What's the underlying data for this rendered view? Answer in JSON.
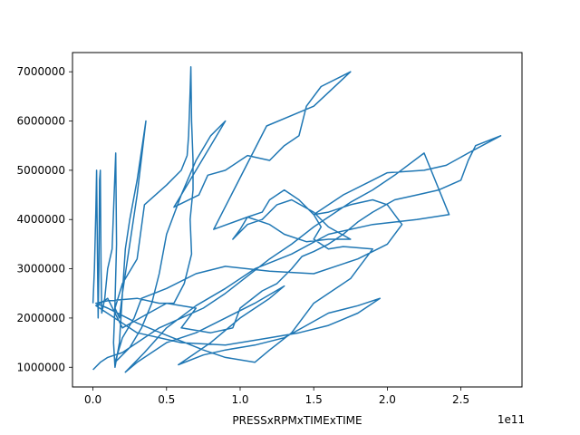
{
  "chart_data": {
    "type": "line",
    "title": "",
    "xlabel": "PRESSxRPMxTIMExTIME",
    "ylabel": "",
    "x_scale_note": "1e11",
    "xlim": [
      -0.139,
      2.915
    ],
    "ylim": [
      600000,
      7390000
    ],
    "x_ticks": [
      0.0,
      0.5,
      1.0,
      1.5,
      2.0,
      2.5
    ],
    "x_tick_labels": [
      "0.0",
      "0.5",
      "1.0",
      "1.5",
      "2.0",
      "2.5"
    ],
    "y_ticks": [
      1000000,
      2000000,
      3000000,
      4000000,
      5000000,
      6000000,
      7000000
    ],
    "y_tick_labels": [
      "1000000",
      "2000000",
      "3000000",
      "4000000",
      "5000000",
      "6000000",
      "7000000"
    ],
    "grid": false,
    "color": "#1f77b4",
    "series": [
      {
        "name": "",
        "x_units": "1e11",
        "points": [
          [
            0.0,
            2300000
          ],
          [
            0.01,
            3000000
          ],
          [
            0.02,
            4200000
          ],
          [
            0.025,
            5000000
          ],
          [
            0.03,
            3500000
          ],
          [
            0.035,
            2000000
          ],
          [
            0.04,
            3000000
          ],
          [
            0.045,
            4800000
          ],
          [
            0.05,
            5000000
          ],
          [
            0.055,
            3000000
          ],
          [
            0.06,
            2100000
          ],
          [
            0.08,
            2400000
          ],
          [
            0.1,
            3000000
          ],
          [
            0.13,
            3400000
          ],
          [
            0.155,
            5350000
          ],
          [
            0.16,
            3500000
          ],
          [
            0.15,
            2300000
          ],
          [
            0.14,
            1500000
          ],
          [
            0.15,
            1000000
          ],
          [
            0.18,
            1500000
          ],
          [
            0.2,
            2500000
          ],
          [
            0.22,
            3400000
          ],
          [
            0.25,
            4000000
          ],
          [
            0.3,
            4800000
          ],
          [
            0.36,
            6000000
          ],
          [
            0.3,
            4500000
          ],
          [
            0.25,
            3500000
          ],
          [
            0.2,
            2500000
          ],
          [
            0.18,
            2000000
          ],
          [
            0.15,
            2200000
          ],
          [
            0.2,
            2700000
          ],
          [
            0.3,
            3200000
          ],
          [
            0.35,
            4300000
          ],
          [
            0.5,
            4700000
          ],
          [
            0.6,
            5000000
          ],
          [
            0.64,
            5300000
          ],
          [
            0.65,
            5700000
          ],
          [
            0.66,
            6600000
          ],
          [
            0.665,
            7100000
          ],
          [
            0.67,
            6000000
          ],
          [
            0.68,
            5200000
          ],
          [
            0.68,
            4600000
          ],
          [
            0.66,
            4000000
          ],
          [
            0.67,
            3300000
          ],
          [
            0.62,
            2700000
          ],
          [
            0.55,
            2300000
          ],
          [
            0.45,
            2300000
          ],
          [
            0.3,
            2400000
          ],
          [
            0.1,
            2350000
          ],
          [
            0.02,
            2300000
          ],
          [
            0.1,
            2200000
          ],
          [
            0.3,
            1900000
          ],
          [
            0.5,
            1650000
          ],
          [
            0.75,
            1350000
          ],
          [
            0.9,
            1200000
          ],
          [
            1.1,
            1100000
          ],
          [
            1.2,
            1350000
          ],
          [
            1.35,
            1700000
          ],
          [
            1.5,
            2300000
          ],
          [
            1.6,
            2500000
          ],
          [
            1.75,
            2800000
          ],
          [
            1.8,
            3000000
          ],
          [
            1.9,
            3400000
          ],
          [
            1.7,
            3450000
          ],
          [
            1.6,
            3400000
          ],
          [
            1.5,
            3600000
          ],
          [
            1.55,
            3850000
          ],
          [
            1.5,
            4100000
          ],
          [
            1.4,
            4400000
          ],
          [
            1.3,
            4600000
          ],
          [
            1.2,
            4400000
          ],
          [
            1.15,
            4150000
          ],
          [
            1.05,
            4050000
          ],
          [
            1.0,
            3800000
          ],
          [
            0.95,
            3600000
          ],
          [
            1.05,
            3900000
          ],
          [
            1.15,
            4000000
          ],
          [
            1.25,
            4300000
          ],
          [
            1.35,
            4400000
          ],
          [
            1.5,
            4150000
          ],
          [
            1.6,
            3850000
          ],
          [
            1.75,
            3600000
          ],
          [
            1.6,
            3600000
          ],
          [
            1.45,
            3550000
          ],
          [
            1.3,
            3700000
          ],
          [
            1.2,
            3900000
          ],
          [
            1.05,
            4050000
          ],
          [
            0.82,
            3800000
          ],
          [
            1.18,
            5900000
          ],
          [
            1.5,
            6300000
          ],
          [
            1.75,
            7000000
          ],
          [
            1.55,
            6700000
          ],
          [
            1.45,
            6300000
          ],
          [
            1.4,
            5700000
          ],
          [
            1.3,
            5500000
          ],
          [
            1.2,
            5200000
          ],
          [
            1.05,
            5300000
          ],
          [
            0.9,
            5000000
          ],
          [
            0.78,
            4900000
          ],
          [
            0.72,
            4500000
          ],
          [
            0.55,
            4250000
          ],
          [
            0.7,
            5000000
          ],
          [
            0.8,
            5500000
          ],
          [
            0.9,
            6000000
          ],
          [
            0.8,
            5700000
          ],
          [
            0.7,
            5200000
          ],
          [
            0.6,
            4500000
          ],
          [
            0.5,
            3700000
          ],
          [
            0.45,
            2900000
          ],
          [
            0.4,
            2300000
          ],
          [
            0.33,
            1800000
          ],
          [
            0.25,
            1400000
          ],
          [
            0.15,
            1100000
          ],
          [
            0.2,
            1600000
          ],
          [
            0.28,
            2000000
          ],
          [
            0.33,
            2400000
          ],
          [
            0.5,
            2600000
          ],
          [
            0.7,
            2900000
          ],
          [
            0.9,
            3050000
          ],
          [
            1.2,
            2950000
          ],
          [
            1.5,
            2900000
          ],
          [
            1.8,
            3200000
          ],
          [
            2.0,
            3500000
          ],
          [
            2.1,
            3900000
          ],
          [
            2.0,
            4300000
          ],
          [
            1.9,
            4400000
          ],
          [
            1.75,
            4300000
          ],
          [
            1.6,
            4150000
          ],
          [
            1.5,
            4100000
          ],
          [
            1.7,
            4500000
          ],
          [
            1.9,
            4800000
          ],
          [
            2.0,
            4950000
          ],
          [
            2.25,
            5000000
          ],
          [
            2.4,
            5100000
          ],
          [
            2.55,
            5350000
          ],
          [
            2.77,
            5700000
          ],
          [
            2.6,
            5500000
          ],
          [
            2.55,
            5200000
          ],
          [
            2.5,
            4800000
          ],
          [
            2.35,
            4600000
          ],
          [
            2.2,
            4500000
          ],
          [
            2.05,
            4400000
          ],
          [
            1.9,
            4150000
          ],
          [
            1.8,
            3950000
          ],
          [
            1.7,
            3700000
          ],
          [
            1.6,
            3500000
          ],
          [
            1.5,
            3350000
          ],
          [
            1.42,
            3250000
          ],
          [
            1.35,
            3000000
          ],
          [
            1.25,
            2700000
          ],
          [
            1.15,
            2550000
          ],
          [
            1.0,
            2200000
          ],
          [
            0.95,
            1800000
          ],
          [
            0.8,
            1700000
          ],
          [
            0.6,
            1800000
          ],
          [
            0.7,
            2200000
          ],
          [
            0.5,
            2300000
          ],
          [
            0.32,
            2000000
          ],
          [
            0.2,
            1800000
          ],
          [
            0.1,
            2400000
          ],
          [
            0.05,
            2300000
          ],
          [
            0.02,
            2250000
          ],
          [
            0.3,
            1700000
          ],
          [
            0.6,
            1500000
          ],
          [
            0.9,
            1450000
          ],
          [
            1.2,
            1600000
          ],
          [
            1.4,
            1700000
          ],
          [
            1.6,
            1850000
          ],
          [
            1.8,
            2100000
          ],
          [
            1.95,
            2400000
          ],
          [
            1.8,
            2250000
          ],
          [
            1.6,
            2100000
          ],
          [
            1.45,
            1850000
          ],
          [
            1.3,
            1600000
          ],
          [
            1.1,
            1450000
          ],
          [
            0.9,
            1350000
          ],
          [
            0.75,
            1250000
          ],
          [
            0.58,
            1050000
          ],
          [
            0.8,
            1500000
          ],
          [
            1.0,
            2000000
          ],
          [
            1.2,
            2400000
          ],
          [
            1.3,
            2650000
          ],
          [
            1.1,
            2300000
          ],
          [
            0.9,
            2000000
          ],
          [
            0.7,
            1700000
          ],
          [
            0.5,
            1500000
          ],
          [
            0.3,
            1100000
          ],
          [
            0.22,
            900000
          ],
          [
            0.35,
            1300000
          ],
          [
            0.5,
            1800000
          ],
          [
            0.7,
            2250000
          ],
          [
            0.9,
            2600000
          ],
          [
            1.1,
            3000000
          ],
          [
            1.35,
            3300000
          ],
          [
            1.6,
            3700000
          ],
          [
            1.9,
            3900000
          ],
          [
            2.2,
            4000000
          ],
          [
            2.42,
            4100000
          ],
          [
            2.25,
            5350000
          ],
          [
            2.05,
            4900000
          ],
          [
            1.9,
            4600000
          ],
          [
            1.75,
            4350000
          ],
          [
            1.6,
            4050000
          ],
          [
            1.5,
            3850000
          ],
          [
            1.35,
            3500000
          ],
          [
            1.2,
            3200000
          ],
          [
            1.05,
            2850000
          ],
          [
            0.9,
            2500000
          ],
          [
            0.75,
            2200000
          ],
          [
            0.6,
            2000000
          ],
          [
            0.45,
            1800000
          ],
          [
            0.3,
            1500000
          ],
          [
            0.2,
            1300000
          ],
          [
            0.1,
            1200000
          ],
          [
            0.05,
            1100000
          ],
          [
            0.0,
            950000
          ]
        ]
      }
    ]
  }
}
